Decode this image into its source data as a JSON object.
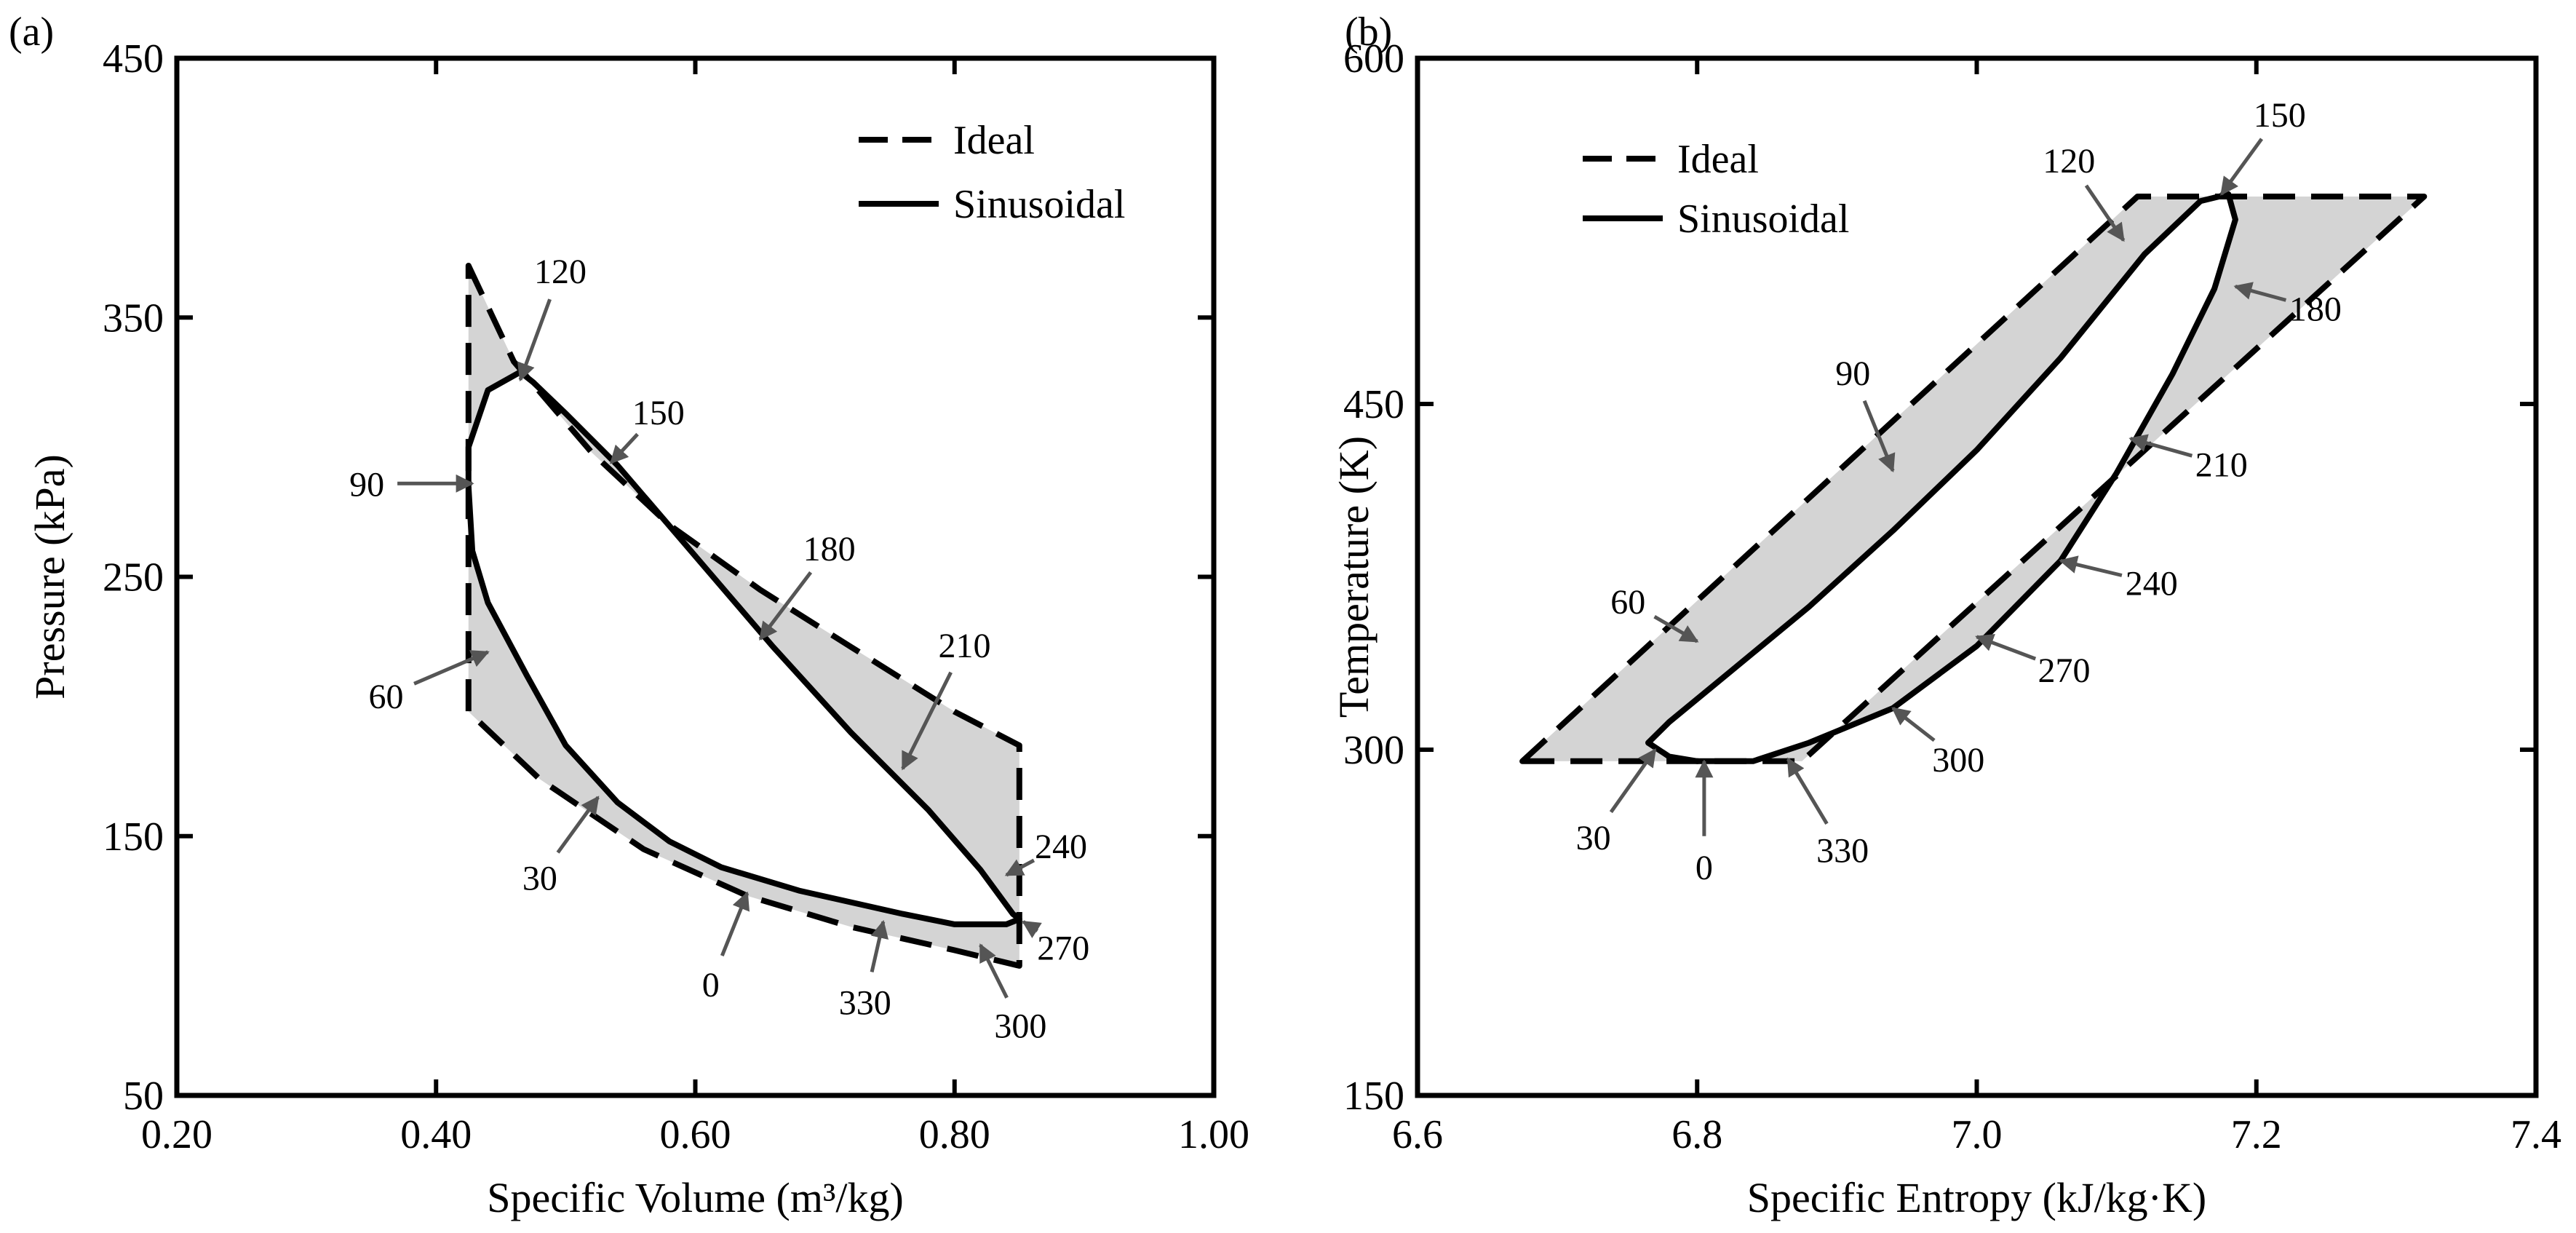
{
  "chart_data": [
    {
      "type": "line",
      "panel_label": "(a)",
      "title": "",
      "xlabel": "Specific Volume (m³/kg)",
      "ylabel": "Pressure (kPa)",
      "xlim": [
        0.2,
        1.0
      ],
      "ylim": [
        50,
        450
      ],
      "xticks": [
        0.2,
        0.4,
        0.6,
        0.8,
        1.0
      ],
      "xtick_labels": [
        "0.20",
        "0.40",
        "0.60",
        "0.80",
        "1.00"
      ],
      "yticks": [
        50,
        150,
        250,
        350,
        450
      ],
      "ytick_labels": [
        "50",
        "150",
        "250",
        "350",
        "450"
      ],
      "legend": {
        "position": "top-right",
        "entries": [
          "Ideal",
          "Sinusoidal"
        ]
      },
      "series": [
        {
          "name": "Ideal",
          "style": "dashed",
          "points": [
            [
              0.425,
              370
            ],
            [
              0.46,
              333
            ],
            [
              0.52,
              298
            ],
            [
              0.58,
              270
            ],
            [
              0.65,
              245
            ],
            [
              0.72,
              223
            ],
            [
              0.8,
              198
            ],
            [
              0.85,
              185
            ],
            [
              0.85,
              100
            ],
            [
              0.8,
              106
            ],
            [
              0.72,
              115
            ],
            [
              0.64,
              127
            ],
            [
              0.56,
              145
            ],
            [
              0.48,
              172
            ],
            [
              0.425,
              198
            ],
            [
              0.425,
              370
            ]
          ]
        },
        {
          "name": "Sinusoidal",
          "style": "solid",
          "points": [
            [
              0.845,
              120
            ],
            [
              0.82,
              137
            ],
            [
              0.78,
              160
            ],
            [
              0.72,
              190
            ],
            [
              0.66,
              223
            ],
            [
              0.6,
              258
            ],
            [
              0.54,
              293
            ],
            [
              0.5,
              313
            ],
            [
              0.475,
              325
            ],
            [
              0.465,
              329
            ],
            [
              0.44,
              322
            ],
            [
              0.425,
              300
            ],
            [
              0.425,
              285
            ],
            [
              0.428,
              260
            ],
            [
              0.44,
              240
            ],
            [
              0.47,
              212
            ],
            [
              0.5,
              185
            ],
            [
              0.54,
              163
            ],
            [
              0.58,
              148
            ],
            [
              0.62,
              138
            ],
            [
              0.68,
              129
            ],
            [
              0.76,
              120
            ],
            [
              0.8,
              116
            ],
            [
              0.84,
              116
            ],
            [
              0.85,
              118
            ],
            [
              0.845,
              120
            ]
          ]
        }
      ],
      "annotations": [
        {
          "text": "0",
          "x": 0.64,
          "y": 128
        },
        {
          "text": "30",
          "x": 0.525,
          "y": 165
        },
        {
          "text": "60",
          "x": 0.44,
          "y": 221
        },
        {
          "text": "90",
          "x": 0.428,
          "y": 286
        },
        {
          "text": "120",
          "x": 0.465,
          "y": 326
        },
        {
          "text": "150",
          "x": 0.535,
          "y": 294
        },
        {
          "text": "180",
          "x": 0.65,
          "y": 226
        },
        {
          "text": "210",
          "x": 0.76,
          "y": 176
        },
        {
          "text": "240",
          "x": 0.84,
          "y": 135
        },
        {
          "text": "270",
          "x": 0.853,
          "y": 117
        },
        {
          "text": "300",
          "x": 0.82,
          "y": 108
        },
        {
          "text": "330",
          "x": 0.745,
          "y": 117
        }
      ]
    },
    {
      "type": "line",
      "panel_label": "(b)",
      "title": "",
      "xlabel": "Specific Entropy (kJ/kg·K)",
      "ylabel": "Temperature (K)",
      "xlim": [
        6.6,
        7.4
      ],
      "ylim": [
        150,
        600
      ],
      "xticks": [
        6.6,
        6.8,
        7.0,
        7.2,
        7.4
      ],
      "xtick_labels": [
        "6.6",
        "6.8",
        "7.0",
        "7.2",
        "7.4"
      ],
      "yticks": [
        150,
        300,
        450,
        600
      ],
      "ytick_labels": [
        "150",
        "300",
        "450",
        "600"
      ],
      "legend": {
        "position": "top-left",
        "entries": [
          "Ideal",
          "Sinusoidal"
        ]
      },
      "series": [
        {
          "name": "Ideal",
          "style": "dashed",
          "points": [
            [
              6.675,
              295
            ],
            [
              6.875,
              295
            ],
            [
              7.32,
              540
            ],
            [
              7.115,
              540
            ],
            [
              6.675,
              295
            ]
          ]
        },
        {
          "name": "Sinusoidal",
          "style": "solid",
          "points": [
            [
              6.8,
              295
            ],
            [
              6.84,
              295
            ],
            [
              6.88,
              303
            ],
            [
              6.94,
              318
            ],
            [
              7.0,
              345
            ],
            [
              7.06,
              382
            ],
            [
              7.1,
              420
            ],
            [
              7.14,
              463
            ],
            [
              7.17,
              500
            ],
            [
              7.185,
              530
            ],
            [
              7.18,
              541
            ],
            [
              7.16,
              538
            ],
            [
              7.12,
              515
            ],
            [
              7.06,
              470
            ],
            [
              7.0,
              430
            ],
            [
              6.94,
              395
            ],
            [
              6.88,
              362
            ],
            [
              6.82,
              332
            ],
            [
              6.78,
              312
            ],
            [
              6.765,
              303
            ],
            [
              6.78,
              297
            ],
            [
              6.8,
              295
            ]
          ]
        }
      ],
      "annotations": [
        {
          "text": "0",
          "x": 6.805,
          "y": 295
        },
        {
          "text": "30",
          "x": 6.77,
          "y": 300
        },
        {
          "text": "60",
          "x": 6.8,
          "y": 347
        },
        {
          "text": "90",
          "x": 6.94,
          "y": 421
        },
        {
          "text": "120",
          "x": 7.105,
          "y": 521
        },
        {
          "text": "150",
          "x": 7.175,
          "y": 541
        },
        {
          "text": "180",
          "x": 7.185,
          "y": 501
        },
        {
          "text": "210",
          "x": 7.11,
          "y": 435
        },
        {
          "text": "240",
          "x": 7.06,
          "y": 382
        },
        {
          "text": "270",
          "x": 7.0,
          "y": 349
        },
        {
          "text": "300",
          "x": 6.94,
          "y": 318
        },
        {
          "text": "330",
          "x": 6.865,
          "y": 296
        }
      ]
    }
  ]
}
